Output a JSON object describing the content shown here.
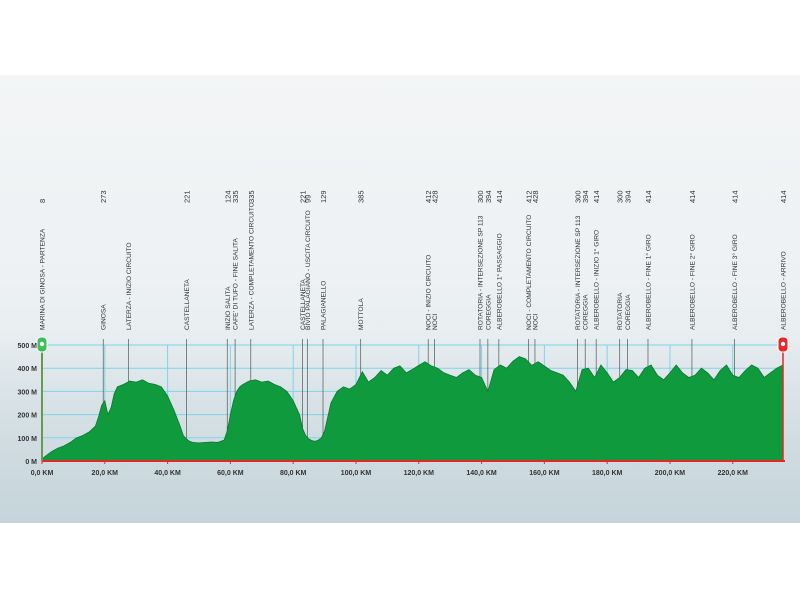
{
  "chart_data": {
    "type": "area",
    "title": "",
    "xlabel": "",
    "ylabel": "",
    "xlim": [
      0,
      236
    ],
    "ylim": [
      0,
      500
    ],
    "grid": true,
    "y_ticks": [
      0,
      100,
      200,
      300,
      400,
      500
    ],
    "y_tick_labels": [
      "0 M",
      "100 M",
      "200 M",
      "300 M",
      "400 M",
      "500 M"
    ],
    "x_ticks": [
      0,
      20,
      40,
      60,
      80,
      100,
      120,
      140,
      160,
      180,
      200,
      220
    ],
    "x_tick_labels": [
      "0,0 KM",
      "20,0 KM",
      "40,0 KM",
      "60,0 KM",
      "80,0 KM",
      "100,0 KM",
      "120,0 KM",
      "140,0 KM",
      "160,0 KM",
      "180,0 KM",
      "200,0 KM",
      "220,0 KM"
    ],
    "colors": {
      "profile_fill": "#0f9a3e",
      "profile_stroke": "#0a7a2e",
      "axis": "#e8262a",
      "grid": "#7fd3ea",
      "start_marker": "#3fbf5b",
      "finish_marker": "#e8262a",
      "label_text": "#333333"
    },
    "profile": {
      "x": [
        0,
        1,
        3,
        5,
        7,
        9,
        11,
        13,
        15,
        17,
        18,
        19,
        20,
        21,
        22,
        23,
        24,
        26,
        28,
        30,
        32,
        34,
        36,
        38,
        40,
        42,
        44,
        45,
        46,
        47,
        48,
        50,
        52,
        54,
        56,
        58,
        59,
        60,
        61,
        62,
        63,
        64,
        66,
        68,
        70,
        72,
        74,
        76,
        78,
        80,
        82,
        83,
        84,
        85,
        86,
        87,
        88,
        89,
        90,
        92,
        94,
        96,
        98,
        100,
        102,
        104,
        106,
        108,
        110,
        112,
        114,
        116,
        118,
        120,
        122,
        124,
        126,
        128,
        130,
        132,
        134,
        136,
        138,
        140,
        142,
        144,
        146,
        148,
        150,
        152,
        154,
        156,
        158,
        160,
        162,
        164,
        166,
        168,
        170,
        172,
        174,
        176,
        178,
        180,
        182,
        184,
        186,
        188,
        190,
        192,
        194,
        196,
        198,
        200,
        202,
        204,
        206,
        208,
        210,
        212,
        214,
        216,
        218,
        220,
        222,
        224,
        226,
        228,
        230,
        232,
        234,
        236
      ],
      "y": [
        8,
        20,
        40,
        55,
        65,
        80,
        100,
        110,
        125,
        150,
        190,
        240,
        260,
        200,
        230,
        290,
        320,
        330,
        345,
        340,
        350,
        335,
        330,
        320,
        280,
        220,
        150,
        110,
        95,
        85,
        80,
        78,
        80,
        82,
        80,
        90,
        130,
        200,
        260,
        300,
        320,
        330,
        345,
        350,
        340,
        345,
        330,
        320,
        300,
        260,
        200,
        140,
        110,
        95,
        88,
        85,
        90,
        100,
        129,
        250,
        300,
        320,
        310,
        330,
        385,
        340,
        360,
        390,
        370,
        400,
        410,
        380,
        395,
        412,
        428,
        410,
        400,
        380,
        370,
        360,
        380,
        394,
        370,
        360,
        300,
        394,
        414,
        400,
        430,
        450,
        440,
        412,
        428,
        410,
        390,
        380,
        370,
        340,
        300,
        394,
        400,
        360,
        414,
        380,
        340,
        360,
        394,
        390,
        360,
        400,
        414,
        370,
        350,
        380,
        414,
        380,
        360,
        370,
        400,
        380,
        350,
        390,
        414,
        370,
        360,
        390,
        414,
        400,
        360,
        380,
        400,
        414
      ]
    },
    "waypoints": [
      {
        "km": 0,
        "name": "MARINA DI GINOSA - PARTENZA",
        "alt": "8"
      },
      {
        "km": 19.5,
        "name": "GINOSA",
        "alt": "273"
      },
      {
        "km": 27.5,
        "name": "LATERZA - INIZIO CIRCUITO",
        "alt": ""
      },
      {
        "km": 46,
        "name": "CASTELLANETA",
        "alt": "221"
      },
      {
        "km": 59,
        "name": "INIZIO SALITA",
        "alt": "124"
      },
      {
        "km": 61.5,
        "name": "CAFE' DI TUFO - FINE SALITA",
        "alt": "335"
      },
      {
        "km": 66.5,
        "name": "LATERZA - COMPLETAMENTO CIRCUITO",
        "alt": "335"
      },
      {
        "km": 83,
        "name": "CASTELLANETA",
        "alt": "221"
      },
      {
        "km": 84.5,
        "name": "BIVIO PALAGIANO - USCITA CIRCUITO",
        "alt": "99"
      },
      {
        "km": 89.5,
        "name": "PALAGIANELLO",
        "alt": "129"
      },
      {
        "km": 101.5,
        "name": "MOTTOLA",
        "alt": "385"
      },
      {
        "km": 123,
        "name": "NOCI - INIZIO CIRCUITO",
        "alt": "412"
      },
      {
        "km": 125,
        "name": "NOCI",
        "alt": "428"
      },
      {
        "km": 139.5,
        "name": "ROTATORIA - INTERSEZIONE SP 113",
        "alt": "300"
      },
      {
        "km": 142,
        "name": "COREGGIA",
        "alt": "394"
      },
      {
        "km": 145.5,
        "name": "ALBEROBELLO 1° PASSAGGIO",
        "alt": "414"
      },
      {
        "km": 155,
        "name": "NOCI - COMPLETAMENTO CIRCUITO",
        "alt": "412"
      },
      {
        "km": 157,
        "name": "NOCI",
        "alt": "428"
      },
      {
        "km": 170.5,
        "name": "ROTATORIA - INTERSEZIONE SP 113",
        "alt": "300"
      },
      {
        "km": 173,
        "name": "COREGGIA",
        "alt": "394"
      },
      {
        "km": 176.5,
        "name": "ALBEROBELLO - INIZIO 1° GIRO",
        "alt": "414"
      },
      {
        "km": 184,
        "name": "ROTATORIA",
        "alt": "300"
      },
      {
        "km": 186.5,
        "name": "COREGGIA",
        "alt": "394"
      },
      {
        "km": 193,
        "name": "ALBEROBELLO - FINE 1° GIRO",
        "alt": "414"
      },
      {
        "km": 207,
        "name": "ALBEROBELLO - FINE 2° GIRO",
        "alt": "414"
      },
      {
        "km": 220.5,
        "name": "ALBEROBELLO - FINE 3° GIRO",
        "alt": "414"
      },
      {
        "km": 236,
        "name": "ALBEROBELLO - ARRIVO",
        "alt": "414"
      }
    ]
  }
}
